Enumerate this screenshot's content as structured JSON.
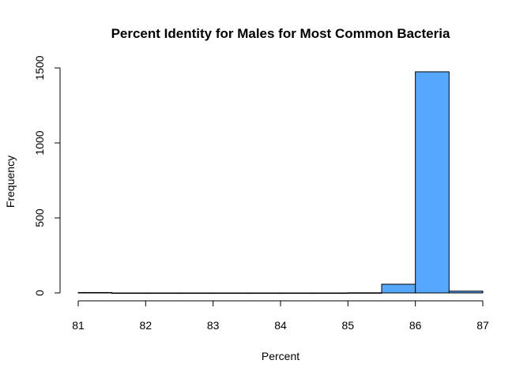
{
  "chart_data": {
    "type": "bar",
    "title": "Percent Identity for Males for Most Common Bacteria",
    "xlabel": "Percent",
    "ylabel": "Frequency",
    "bin_edges": [
      81,
      81.5,
      82,
      82.5,
      83,
      83.5,
      84,
      84.5,
      85,
      85.5,
      86,
      86.5,
      87
    ],
    "values": [
      3,
      0,
      0,
      0,
      0,
      0,
      0,
      0,
      1,
      58,
      1474,
      12
    ],
    "xlim": [
      81,
      87
    ],
    "ylim": [
      0,
      1500
    ],
    "x_ticks": [
      "81",
      "82",
      "83",
      "84",
      "85",
      "86",
      "87"
    ],
    "y_ticks": [
      "0",
      "500",
      "1000",
      "1500"
    ],
    "grid": false,
    "bar_color": "#55a7ff",
    "bar_edge_color": "#000000"
  }
}
